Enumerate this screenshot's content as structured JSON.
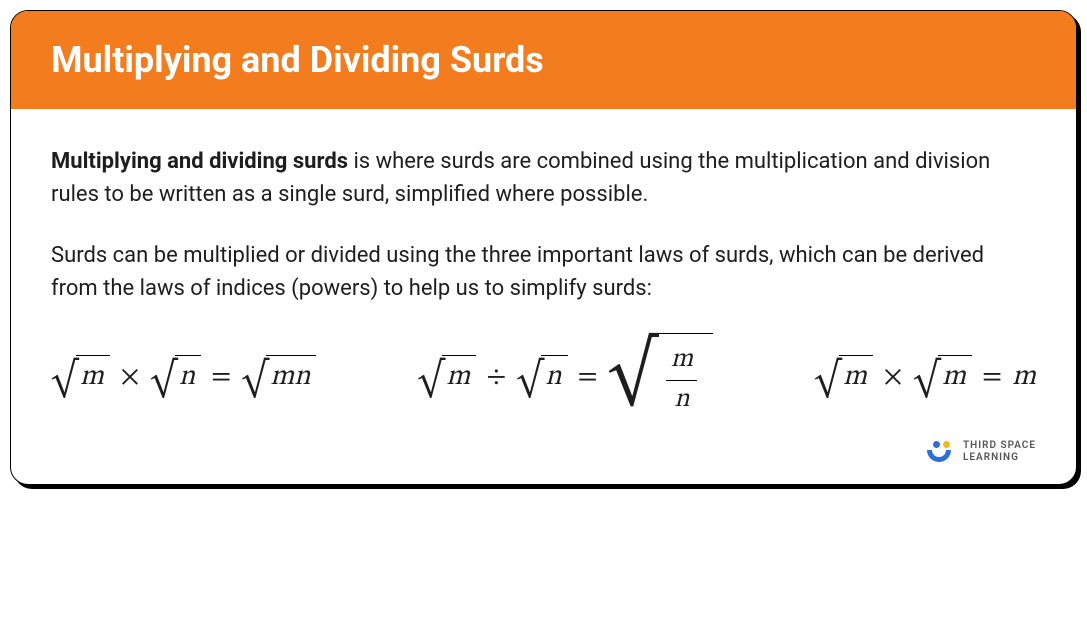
{
  "header": {
    "title": "Multiplying and Dividing Surds",
    "background_color": "#f27c1e",
    "title_color": "#ffffff"
  },
  "body": {
    "text_color": "#1e1e1e",
    "paragraph1_bold": "Multiplying and dividing surds",
    "paragraph1_rest": " is where surds are combined using the multiplication and division rules to be written as a single surd, simplified where possible.",
    "paragraph2": "Surds can be multiplied or divided using the three important laws of surds, which can be derived from the laws of indices (powers) to help us to simplify surds:"
  },
  "equations": {
    "eq1": {
      "left1": "m",
      "left2": "n",
      "op": "×",
      "right": "mn"
    },
    "eq2": {
      "left1": "m",
      "left2": "n",
      "op": "÷",
      "frac_num": "m",
      "frac_den": "n"
    },
    "eq3": {
      "left1": "m",
      "left2": "m",
      "op": "×",
      "right": "m"
    }
  },
  "brand": {
    "line1": "THIRD SPACE",
    "line2": "LEARNING",
    "dot1_color": "#2b6fd8",
    "dot2_color": "#f3b81d",
    "arc_color": "#2b6fd8"
  }
}
